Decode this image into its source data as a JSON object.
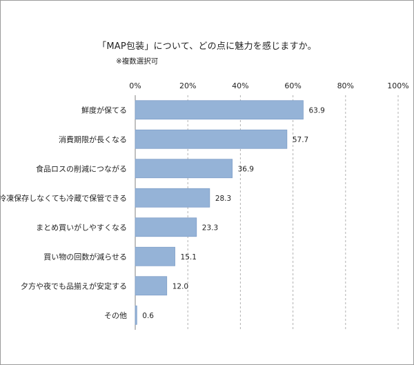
{
  "chart_data": {
    "type": "bar",
    "orientation": "horizontal",
    "title": "「MAP包装」について、どの点に魅力を感じますか。",
    "subtitle": "※複数選択可",
    "categories": [
      "鮮度が保てる",
      "消費期限が長くなる",
      "食品ロスの削減につながる",
      "冷凍保存しなくても冷蔵で保管できる",
      "まとめ買いがしやすくなる",
      "買い物の回数が減らせる",
      "夕方や夜でも品揃えが安定する",
      "その他"
    ],
    "values": [
      63.9,
      57.7,
      36.9,
      28.3,
      23.3,
      15.1,
      12.0,
      0.6
    ],
    "value_labels": [
      "63.9",
      "57.7",
      "36.9",
      "28.3",
      "23.3",
      "15.1",
      "12.0",
      "0.6"
    ],
    "xlim": [
      0,
      100
    ],
    "x_ticks": [
      0,
      20,
      40,
      60,
      80,
      100
    ],
    "x_tick_labels": [
      "0%",
      "20%",
      "40%",
      "60%",
      "80%",
      "100%"
    ],
    "axis_position": "top",
    "grid": true,
    "legend": "none",
    "bar_color": "#95b3d7",
    "bar_edge_color": "#7f9fc8",
    "grid_color": "#b0b0b0"
  }
}
